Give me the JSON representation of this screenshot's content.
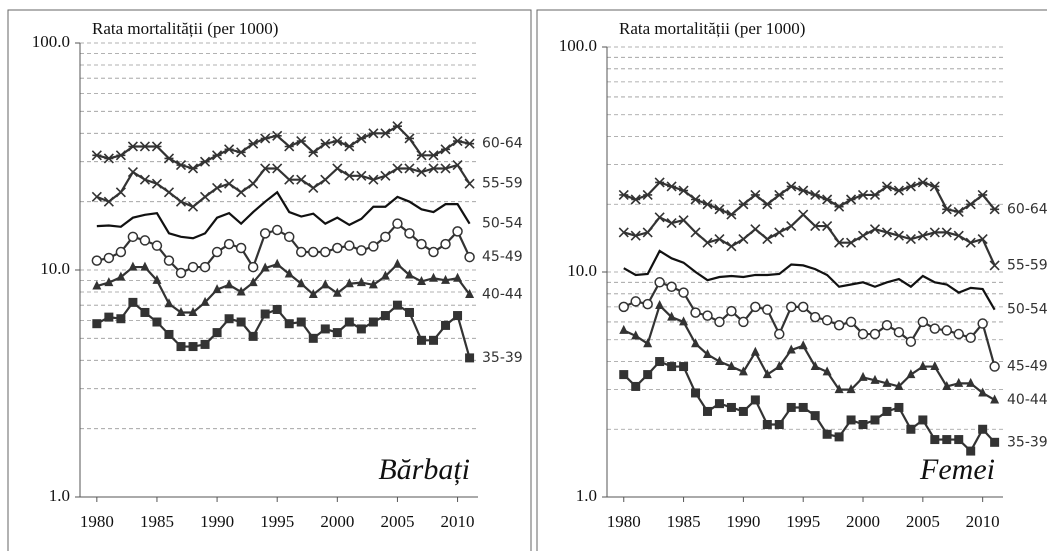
{
  "chart_data": [
    {
      "type": "line",
      "y_label": "Rata mortalității (per 1000)",
      "annotation": "Bărbați",
      "log_scale": true,
      "grid": true,
      "xlim": [
        1978.6,
        2011.7
      ],
      "xticks": [
        1980,
        1985,
        1990,
        1995,
        2000,
        2005,
        2010
      ],
      "ylim": [
        1,
        100
      ],
      "yticks": [
        {
          "value": 1,
          "label": "1.0"
        },
        {
          "value": 10,
          "label": "10.0"
        },
        {
          "value": 100,
          "label": "100.0"
        }
      ],
      "minor_yticks": [
        2,
        3,
        4,
        5,
        6,
        7,
        8,
        9,
        20,
        30,
        40,
        50,
        60,
        70,
        80,
        90
      ],
      "x": [
        1980,
        1981,
        1982,
        1983,
        1984,
        1985,
        1986,
        1987,
        1988,
        1989,
        1990,
        1991,
        1992,
        1993,
        1994,
        1995,
        1996,
        1997,
        1998,
        1999,
        2000,
        2001,
        2002,
        2003,
        2004,
        2005,
        2006,
        2007,
        2008,
        2009,
        2010,
        2011
      ],
      "series": [
        {
          "name": "60-64",
          "color": "#333333",
          "marker": "asterisk",
          "values": [
            32,
            31,
            32,
            35,
            35,
            35,
            31,
            29,
            28,
            30,
            32,
            34,
            33,
            36,
            38,
            39,
            35,
            37,
            33,
            36,
            37,
            35,
            38,
            40,
            40,
            43,
            38,
            32,
            32,
            34,
            37,
            36
          ]
        },
        {
          "name": "55-59",
          "color": "#333333",
          "marker": "x",
          "values": [
            21,
            20,
            22,
            27,
            25,
            24,
            22,
            20,
            19,
            21,
            23,
            24,
            22,
            24,
            28,
            28,
            25,
            25,
            23,
            25,
            28,
            26,
            26,
            25,
            26,
            28,
            28,
            27,
            28,
            28,
            29,
            24
          ]
        },
        {
          "name": "50-54",
          "color": "#111111",
          "marker": "none",
          "values": [
            15.6,
            15.7,
            15.5,
            17,
            17.5,
            17.8,
            14.5,
            14,
            13.8,
            14.5,
            17,
            17.8,
            16,
            18,
            20,
            22,
            18,
            17.2,
            17.7,
            16,
            17,
            15.8,
            16.8,
            19,
            19,
            21,
            20,
            18.5,
            18,
            19.5,
            19.5,
            16
          ]
        },
        {
          "name": "45-49",
          "color": "#333333",
          "marker": "circle",
          "values": [
            11,
            11.3,
            12,
            14,
            13.5,
            12.8,
            11,
            9.7,
            10.3,
            10.3,
            12,
            13,
            12.5,
            10.3,
            14.5,
            15,
            14,
            12,
            12,
            12,
            12.5,
            12.8,
            12.2,
            12.7,
            14,
            16,
            14.5,
            13,
            12,
            13,
            14.8,
            11.4
          ]
        },
        {
          "name": "40-44",
          "color": "#333333",
          "marker": "triangle",
          "values": [
            8.5,
            8.8,
            9.3,
            10.3,
            10.3,
            9,
            7.1,
            6.5,
            6.5,
            7.2,
            8.2,
            8.6,
            8,
            8.8,
            10.2,
            10.6,
            9.6,
            8.7,
            7.8,
            8.6,
            7.9,
            8.7,
            8.8,
            8.6,
            9.4,
            10.6,
            9.5,
            8.9,
            9.2,
            9,
            9.2,
            7.8
          ]
        },
        {
          "name": "35-39",
          "color": "#333333",
          "marker": "square",
          "values": [
            5.8,
            6.2,
            6.1,
            7.2,
            6.5,
            5.9,
            5.2,
            4.6,
            4.6,
            4.7,
            5.3,
            6.1,
            5.9,
            5.1,
            6.4,
            6.7,
            5.8,
            5.9,
            5,
            5.5,
            5.3,
            5.9,
            5.5,
            5.9,
            6.3,
            7,
            6.5,
            4.9,
            4.9,
            5.7,
            6.3,
            4.1
          ]
        }
      ]
    },
    {
      "type": "line",
      "y_label": "Rata mortalității (per 1000)",
      "annotation": "Femei",
      "log_scale": true,
      "grid": true,
      "xlim": [
        1978.6,
        2011.7
      ],
      "xticks": [
        1980,
        1985,
        1990,
        1995,
        2000,
        2005,
        2010
      ],
      "ylim": [
        1,
        100
      ],
      "yticks": [
        {
          "value": 1,
          "label": "1.0"
        },
        {
          "value": 10,
          "label": "10.0"
        },
        {
          "value": 100,
          "label": "100.0"
        }
      ],
      "minor_yticks": [
        2,
        3,
        4,
        5,
        6,
        7,
        8,
        9,
        20,
        30,
        40,
        50,
        60,
        70,
        80,
        90
      ],
      "x": [
        1980,
        1981,
        1982,
        1983,
        1984,
        1985,
        1986,
        1987,
        1988,
        1989,
        1990,
        1991,
        1992,
        1993,
        1994,
        1995,
        1996,
        1997,
        1998,
        1999,
        2000,
        2001,
        2002,
        2003,
        2004,
        2005,
        2006,
        2007,
        2008,
        2009,
        2010,
        2011
      ],
      "series": [
        {
          "name": "60-64",
          "color": "#333333",
          "marker": "asterisk",
          "values": [
            22,
            21,
            22,
            25,
            24,
            23,
            21,
            20,
            19,
            18,
            20,
            22,
            20,
            22,
            24,
            23,
            22,
            21,
            19.5,
            21,
            22,
            22,
            24,
            23,
            24,
            25,
            24,
            19,
            18.5,
            20,
            22,
            19
          ]
        },
        {
          "name": "55-59",
          "color": "#333333",
          "marker": "x",
          "values": [
            15,
            14.5,
            15,
            17.5,
            16.5,
            17,
            15,
            13.5,
            14,
            13,
            14,
            15.5,
            14,
            15,
            16,
            18,
            16,
            16,
            13.5,
            13.5,
            14.5,
            15.5,
            15,
            14.5,
            14,
            14.5,
            15,
            15,
            14.5,
            13.5,
            14,
            10.7
          ]
        },
        {
          "name": "50-54",
          "color": "#111111",
          "marker": "none",
          "values": [
            10.4,
            9.7,
            9.8,
            12.4,
            11.5,
            11,
            10,
            9.2,
            9.5,
            9.6,
            9.5,
            9.7,
            9.7,
            9.8,
            10.8,
            10.7,
            10.3,
            9.7,
            8.6,
            8.8,
            9,
            8.6,
            9,
            9.3,
            8.6,
            9.6,
            9,
            8.8,
            8.1,
            8.5,
            8.4,
            6.8
          ]
        },
        {
          "name": "45-49",
          "color": "#333333",
          "marker": "circle",
          "values": [
            7,
            7.4,
            7.2,
            9,
            8.6,
            8.1,
            6.6,
            6.4,
            6,
            6.7,
            6,
            7,
            6.8,
            5.3,
            7,
            7,
            6.3,
            6.1,
            5.8,
            6,
            5.3,
            5.3,
            5.8,
            5.4,
            4.9,
            6,
            5.6,
            5.5,
            5.3,
            5.1,
            5.9,
            3.8
          ]
        },
        {
          "name": "40-44",
          "color": "#333333",
          "marker": "triangle",
          "values": [
            5.5,
            5.2,
            4.8,
            7.1,
            6.3,
            6,
            4.8,
            4.3,
            4,
            3.8,
            3.6,
            4.4,
            3.5,
            3.8,
            4.5,
            4.7,
            3.8,
            3.6,
            3,
            3,
            3.4,
            3.3,
            3.2,
            3.1,
            3.5,
            3.8,
            3.8,
            3.1,
            3.2,
            3.2,
            2.9,
            2.7
          ]
        },
        {
          "name": "35-39",
          "color": "#333333",
          "marker": "square",
          "values": [
            3.5,
            3.1,
            3.5,
            4,
            3.8,
            3.8,
            2.9,
            2.4,
            2.6,
            2.5,
            2.4,
            2.7,
            2.1,
            2.1,
            2.5,
            2.5,
            2.3,
            1.9,
            1.85,
            2.2,
            2.1,
            2.2,
            2.4,
            2.5,
            2,
            2.2,
            1.8,
            1.8,
            1.8,
            1.6,
            2,
            1.75
          ]
        }
      ]
    }
  ]
}
